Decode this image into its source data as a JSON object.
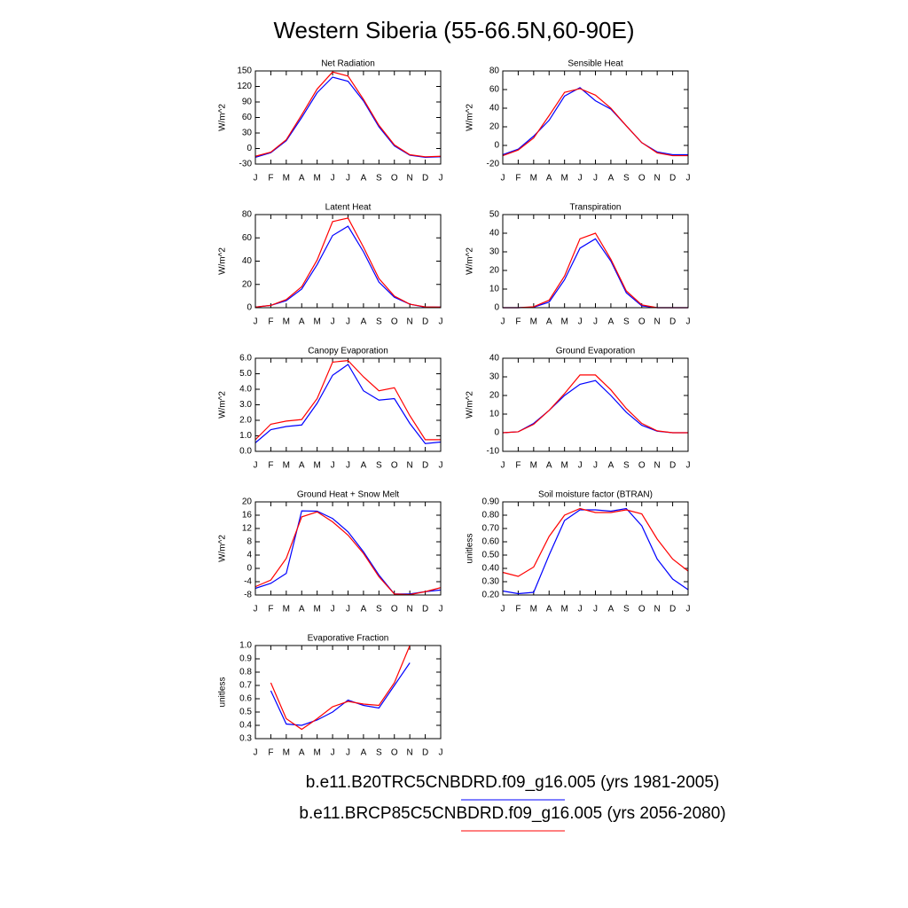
{
  "title": "Western Siberia (55-66.5N,60-90E)",
  "legend": [
    {
      "name": "b.e11.B20TRC5CNBDRD.f09_g16.005 (yrs 1981-2005)",
      "color": "#0000ff"
    },
    {
      "name": "b.e11.BRCP85C5CNBDRD.f09_g16.005 (yrs 2056-2080)",
      "color": "#ff0000"
    }
  ],
  "chart_data": [
    {
      "type": "line",
      "title": "Net Radiation",
      "ylabel": "W/m^2",
      "categories": [
        "J",
        "F",
        "M",
        "A",
        "M",
        "J",
        "J",
        "A",
        "S",
        "O",
        "N",
        "D",
        "J"
      ],
      "ylim": [
        -30,
        150
      ],
      "yticks": [
        -30,
        0,
        30,
        60,
        90,
        120,
        150
      ],
      "series": [
        {
          "color": "#0000ff",
          "values": [
            -17,
            -8,
            15,
            60,
            108,
            138,
            130,
            92,
            42,
            5,
            -13,
            -17,
            -16
          ]
        },
        {
          "color": "#ff0000",
          "values": [
            -15,
            -7,
            17,
            65,
            115,
            148,
            140,
            95,
            45,
            7,
            -12,
            -16,
            -15
          ]
        }
      ]
    },
    {
      "type": "line",
      "title": "Sensible Heat",
      "ylabel": "W/m^2",
      "categories": [
        "J",
        "F",
        "M",
        "A",
        "M",
        "J",
        "J",
        "A",
        "S",
        "O",
        "N",
        "D",
        "J"
      ],
      "ylim": [
        -20,
        80
      ],
      "yticks": [
        -20,
        0,
        20,
        40,
        60,
        80
      ],
      "series": [
        {
          "color": "#0000ff",
          "values": [
            -10,
            -4,
            10,
            27,
            53,
            62,
            48,
            39,
            21,
            3,
            -7,
            -10,
            -10
          ]
        },
        {
          "color": "#ff0000",
          "values": [
            -11,
            -5,
            8,
            32,
            57,
            61,
            54,
            40,
            21,
            3,
            -8,
            -11,
            -11
          ]
        }
      ]
    },
    {
      "type": "line",
      "title": "Latent Heat",
      "ylabel": "W/m^2",
      "categories": [
        "J",
        "F",
        "M",
        "A",
        "M",
        "J",
        "J",
        "A",
        "S",
        "O",
        "N",
        "D",
        "J"
      ],
      "ylim": [
        0,
        80
      ],
      "yticks": [
        0,
        20,
        40,
        60,
        80
      ],
      "series": [
        {
          "color": "#0000ff",
          "values": [
            0.5,
            2,
            6,
            16,
            37,
            62,
            70,
            48,
            22,
            9,
            3,
            0.5,
            0.5
          ]
        },
        {
          "color": "#ff0000",
          "values": [
            0.5,
            2,
            7,
            18,
            41,
            74,
            77,
            52,
            25,
            10,
            3,
            0.7,
            0.5
          ]
        }
      ]
    },
    {
      "type": "line",
      "title": "Transpiration",
      "ylabel": "W/m^2",
      "categories": [
        "J",
        "F",
        "M",
        "A",
        "M",
        "J",
        "J",
        "A",
        "S",
        "O",
        "N",
        "D",
        "J"
      ],
      "ylim": [
        0,
        50
      ],
      "yticks": [
        0,
        10,
        20,
        30,
        40,
        50
      ],
      "series": [
        {
          "color": "#0000ff",
          "values": [
            0,
            0,
            0.3,
            3,
            15,
            32,
            37,
            25,
            8,
            1,
            0,
            0,
            0
          ]
        },
        {
          "color": "#ff0000",
          "values": [
            0,
            0,
            0.5,
            4,
            17,
            37,
            40,
            26,
            9,
            1.5,
            0,
            0,
            0
          ]
        }
      ]
    },
    {
      "type": "line",
      "title": "Canopy Evaporation",
      "ylabel": "W/m^2",
      "categories": [
        "J",
        "F",
        "M",
        "A",
        "M",
        "J",
        "J",
        "A",
        "S",
        "O",
        "N",
        "D",
        "J"
      ],
      "ylim": [
        0,
        6
      ],
      "yticks": [
        {
          "value": 0,
          "label": "0.0"
        },
        {
          "value": 1,
          "label": "1.0"
        },
        {
          "value": 2,
          "label": "2.0"
        },
        {
          "value": 3,
          "label": "3.0"
        },
        {
          "value": 4,
          "label": "4.0"
        },
        {
          "value": 5,
          "label": "5.0"
        },
        {
          "value": 6,
          "label": "6.0"
        }
      ],
      "series": [
        {
          "color": "#0000ff",
          "values": [
            0.55,
            1.4,
            1.6,
            1.7,
            3.1,
            4.9,
            5.6,
            3.9,
            3.3,
            3.4,
            1.8,
            0.5,
            0.6
          ]
        },
        {
          "color": "#ff0000",
          "values": [
            0.75,
            1.75,
            1.95,
            2.05,
            3.4,
            5.75,
            5.85,
            4.8,
            3.9,
            4.1,
            2.3,
            0.75,
            0.75
          ]
        }
      ]
    },
    {
      "type": "line",
      "title": "Ground Evaporation",
      "ylabel": "W/m^2",
      "categories": [
        "J",
        "F",
        "M",
        "A",
        "M",
        "J",
        "J",
        "A",
        "S",
        "O",
        "N",
        "D",
        "J"
      ],
      "ylim": [
        -10,
        40
      ],
      "yticks": [
        -10,
        0,
        10,
        20,
        30,
        40
      ],
      "series": [
        {
          "color": "#0000ff",
          "values": [
            0,
            0.5,
            5,
            12,
            20,
            26,
            28,
            20,
            11,
            4,
            0.8,
            0,
            0
          ]
        },
        {
          "color": "#ff0000",
          "values": [
            0,
            0.5,
            4.5,
            12,
            21,
            31,
            31,
            23,
            13,
            5,
            1,
            0,
            0
          ]
        }
      ]
    },
    {
      "type": "line",
      "title": "Ground Heat + Snow Melt",
      "ylabel": "W/m^2",
      "categories": [
        "J",
        "F",
        "M",
        "A",
        "M",
        "J",
        "J",
        "A",
        "S",
        "O",
        "N",
        "D",
        "J"
      ],
      "ylim": [
        -8,
        20
      ],
      "yticks": [
        -8,
        -4,
        0,
        4,
        8,
        12,
        16,
        20
      ],
      "series": [
        {
          "color": "#0000ff",
          "values": [
            -6,
            -4.5,
            -1.5,
            17.3,
            17.2,
            15,
            11,
            5,
            -2,
            -7.7,
            -7.7,
            -7,
            -6.5
          ]
        },
        {
          "color": "#ff0000",
          "values": [
            -5.5,
            -3.5,
            3,
            15.5,
            17,
            14,
            10,
            4.5,
            -2.5,
            -7.7,
            -7.9,
            -7,
            -5.8
          ]
        }
      ]
    },
    {
      "type": "line",
      "title": "Soil moisture factor (BTRAN)",
      "ylabel": "unitless",
      "categories": [
        "J",
        "F",
        "M",
        "A",
        "M",
        "J",
        "J",
        "A",
        "S",
        "O",
        "N",
        "D",
        "J"
      ],
      "ylim": [
        0.2,
        0.9
      ],
      "yticks": [
        {
          "value": 0.2,
          "label": "0.20"
        },
        {
          "value": 0.3,
          "label": "0.30"
        },
        {
          "value": 0.4,
          "label": "0.40"
        },
        {
          "value": 0.5,
          "label": "0.50"
        },
        {
          "value": 0.6,
          "label": "0.60"
        },
        {
          "value": 0.7,
          "label": "0.70"
        },
        {
          "value": 0.8,
          "label": "0.80"
        },
        {
          "value": 0.9,
          "label": "0.90"
        }
      ],
      "series": [
        {
          "color": "#0000ff",
          "values": [
            0.23,
            0.21,
            0.22,
            0.5,
            0.76,
            0.84,
            0.84,
            0.83,
            0.85,
            0.72,
            0.47,
            0.32,
            0.24
          ]
        },
        {
          "color": "#ff0000",
          "values": [
            0.37,
            0.34,
            0.41,
            0.64,
            0.8,
            0.85,
            0.82,
            0.82,
            0.84,
            0.81,
            0.62,
            0.47,
            0.38
          ]
        }
      ]
    },
    {
      "type": "line",
      "title": "Evaporative Fraction",
      "ylabel": "unitless",
      "categories": [
        "J",
        "F",
        "M",
        "A",
        "M",
        "J",
        "J",
        "A",
        "S",
        "O",
        "N",
        "D",
        "J"
      ],
      "ylim": [
        0.3,
        1
      ],
      "yticks": [
        0.3,
        0.4,
        0.5,
        0.6,
        0.7,
        0.8,
        0.9,
        {
          "value": 1,
          "label": "1.0"
        }
      ],
      "series": [
        {
          "color": "#0000ff",
          "values": [
            null,
            0.66,
            0.41,
            0.4,
            0.44,
            0.5,
            0.59,
            0.55,
            0.53,
            0.7,
            0.87,
            null,
            null
          ]
        },
        {
          "color": "#ff0000",
          "values": [
            null,
            0.72,
            0.45,
            0.37,
            0.45,
            0.54,
            0.58,
            0.56,
            0.55,
            0.72,
            1,
            null,
            null
          ]
        }
      ]
    }
  ]
}
